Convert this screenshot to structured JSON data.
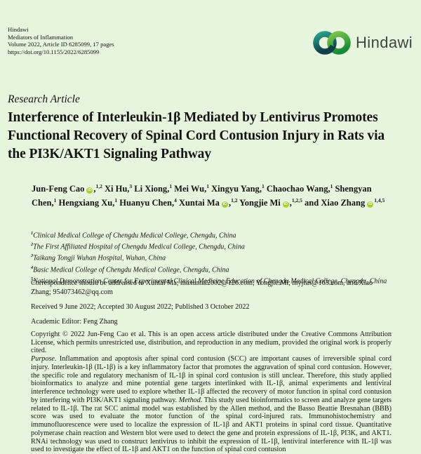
{
  "page": {
    "background": "#e8f5de",
    "text_color": "#141414"
  },
  "masthead": {
    "lines": [
      "Hindawi",
      "Mediators of Inflammation",
      "Volume 2022, Article ID 6285099, 17 pages",
      "https://doi.org/10.1155/2022/6285099"
    ]
  },
  "logo": {
    "wordmark": "Hindawi",
    "teal_ring_top": "#2aa189",
    "teal_ring_bottom": "#0f3e4c",
    "green_ring_top": "#76c24b",
    "green_ring_bottom": "#168a38",
    "wordmark_color": "#3d4541"
  },
  "article": {
    "type_label": "Research Article",
    "title": "Interference of Interleukin-1β Mediated by Lentivirus Promotes Functional Recovery of Spinal Cord Contusion Injury in Rats via the PI3K/AKT1 Signaling Pathway"
  },
  "authors": {
    "orcid_color": "#a6ce39",
    "orcid_label": "iD",
    "list": [
      {
        "name": "Jun-Feng Cao",
        "orcid": true,
        "comma": true,
        "sup": "1,2"
      },
      {
        "name": "Xi Hu",
        "orcid": false,
        "comma": true,
        "sup": "3"
      },
      {
        "name": "Li Xiong",
        "orcid": false,
        "comma": true,
        "sup": "1"
      },
      {
        "name": "Mei Wu",
        "orcid": false,
        "comma": true,
        "sup": "1"
      },
      {
        "name": "Xingyu Yang",
        "orcid": false,
        "comma": true,
        "sup": "1"
      },
      {
        "name": "Chaochao Wang",
        "orcid": false,
        "comma": true,
        "sup": "1"
      },
      {
        "name": "Shengyan Chen",
        "orcid": false,
        "comma": true,
        "sup": "1"
      },
      {
        "name": "Hengxiang Xu",
        "orcid": false,
        "comma": true,
        "sup": "1"
      },
      {
        "name": "Huanyu Chen",
        "orcid": false,
        "comma": true,
        "sup": "4"
      },
      {
        "name": "Xuntai Ma",
        "orcid": true,
        "comma": true,
        "sup": "1,2"
      },
      {
        "name": "Yongjie Mi",
        "orcid": true,
        "comma": true,
        "sup": "1,2,5"
      },
      {
        "name": "and Xiao Zhang",
        "orcid": true,
        "comma": false,
        "sup": "1,4,5"
      }
    ]
  },
  "affiliations": [
    {
      "num": "1",
      "text": "Clinical Medical College of Chengdu Medical College, Chengdu, China"
    },
    {
      "num": "2",
      "text": "The First Affiliated Hospital of Chengdu Medical College, Chengdu, China"
    },
    {
      "num": "3",
      "text": "Taikang Tongji Wuhan Hospital, Wuhan, China"
    },
    {
      "num": "4",
      "text": "Basic Medical College of Chengdu Medical College, Chengdu, China"
    },
    {
      "num": "5",
      "text": "National Demonstration Center for Experimental Clinical Medicine Education of Chengdu Medical College, Chengdu, China"
    }
  ],
  "correspondence": {
    "segments": [
      {
        "text": "Correspondence should be addressed to Xuntai Ma; "
      },
      {
        "text": "maxuntai2002@126.com",
        "email": true
      },
      {
        "text": ", Yongjie Mi; "
      },
      {
        "text": "myjfas@163.com",
        "email": true
      },
      {
        "text": ", and Xiao Zhang; "
      },
      {
        "text": "954073462@qq.com",
        "email": true
      }
    ]
  },
  "dates": "Received 9 June 2022; Accepted 30 August 2022; Published 3 October 2022",
  "editor": "Academic Editor: Feng Zhang",
  "copyright": "Copyright © 2022 Jun-Feng Cao et al. This is an open access article distributed under the Creative Commons Attribution License, which permits unrestricted use, distribution, and reproduction in any medium, provided the original work is properly cited.",
  "abstract": {
    "segments": [
      {
        "text": "Purpose.",
        "italic": true
      },
      {
        "text": " Inflammation and apoptosis after spinal cord contusion (SCC) are important causes of irreversible spinal cord injury. Interleukin-1β (IL-1β) is a key inflammatory factor that promotes the aggravation of spinal cord contusion. However, the specific role and regulatory mechanism of IL-1β in spinal cord contusion is still unclear. Therefore, this study applied bioinformatics to analyze and mine potential gene targets interlinked with IL-1β, animal experiments and lentiviral interference technology were used to explore whether IL-1β affected the recovery of motor function in spinal cord contusion by interfering with PI3K/AKT1 signaling pathway. "
      },
      {
        "text": "Method.",
        "italic": true
      },
      {
        "text": " This study used bioinformatics to screen and analyze gene targets related to IL-1β. The rat SCC animal model was established by the Allen method, and the Basso Beattie Bresnahan (BBB) score was used to evaluate the motor function of the spinal cord-injured rats. Immunohistochemistry and immunofluorescence were used to localize the expression of IL-1β and AKT1 proteins in spinal cord tissue. Quantitative polymerase chain reaction and Western blot were used to detect the gene and protein expressions of IL-1β, PI3K, and AKT1. RNAi technology was used to construct lentivirus to inhibit the expression of IL-1β, lentiviral interference with IL-1β was used to investigate the effect of IL-1β and AKT1 on the function of spinal cord contusion"
      }
    ]
  }
}
